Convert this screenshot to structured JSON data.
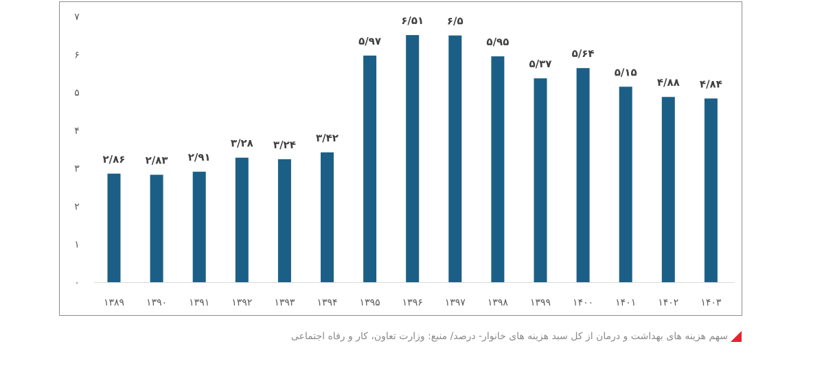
{
  "caption": {
    "text": "سهم هزینه های بهداشت و درمان از کل سبد هزینه های خانوار- درصد/ منبع: وزارت تعاون، کار و رفاه اجتماعی",
    "marker_color": "#e0262e"
  },
  "chart_data": {
    "type": "bar",
    "categories": [
      "۱۳۸۹",
      "۱۳۹۰",
      "۱۳۹۱",
      "۱۳۹۲",
      "۱۳۹۳",
      "۱۳۹۴",
      "۱۳۹۵",
      "۱۳۹۶",
      "۱۳۹۷",
      "۱۳۹۸",
      "۱۳۹۹",
      "۱۴۰۰",
      "۱۴۰۱",
      "۱۴۰۲",
      "۱۴۰۳"
    ],
    "values": [
      2.86,
      2.83,
      2.91,
      3.28,
      3.24,
      3.42,
      5.97,
      6.51,
      6.5,
      5.95,
      5.37,
      5.64,
      5.15,
      4.88,
      4.84
    ],
    "data_labels": [
      "۲/۸۶",
      "۲/۸۳",
      "۲/۹۱",
      "۳/۲۸",
      "۳/۲۴",
      "۳/۴۲",
      "۵/۹۷",
      "۶/۵۱",
      "۶/۵",
      "۵/۹۵",
      "۵/۳۷",
      "۵/۶۴",
      "۵/۱۵",
      "۴/۸۸",
      "۴/۸۴"
    ],
    "y_ticks": [
      0,
      1,
      2,
      3,
      4,
      5,
      6,
      7
    ],
    "y_tick_labels": [
      "۰",
      "۱",
      "۲",
      "۳",
      "۴",
      "۵",
      "۶",
      "۷"
    ],
    "ylim": [
      0,
      7
    ],
    "grid": false,
    "legend": "none",
    "bar_color": "#1c5f86",
    "axis_color": "#d9d9d9"
  }
}
